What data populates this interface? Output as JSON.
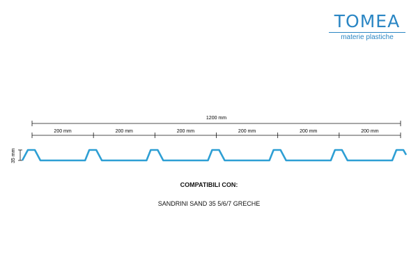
{
  "logo": {
    "brand": "TOMEA",
    "tagline": "materie plastiche",
    "color": "#2a86c4"
  },
  "dimensions": {
    "total": "1200 mm",
    "segments": [
      "200 mm",
      "200 mm",
      "200 mm",
      "200 mm",
      "200 mm",
      "200 mm"
    ],
    "height": "35 mm"
  },
  "profile": {
    "ribs": 7,
    "color": "#2e9fd4"
  },
  "captions": {
    "heading": "COMPATIBILI CON:",
    "model": "SANDRINI SAND 35 5/6/7 GRECHE"
  }
}
